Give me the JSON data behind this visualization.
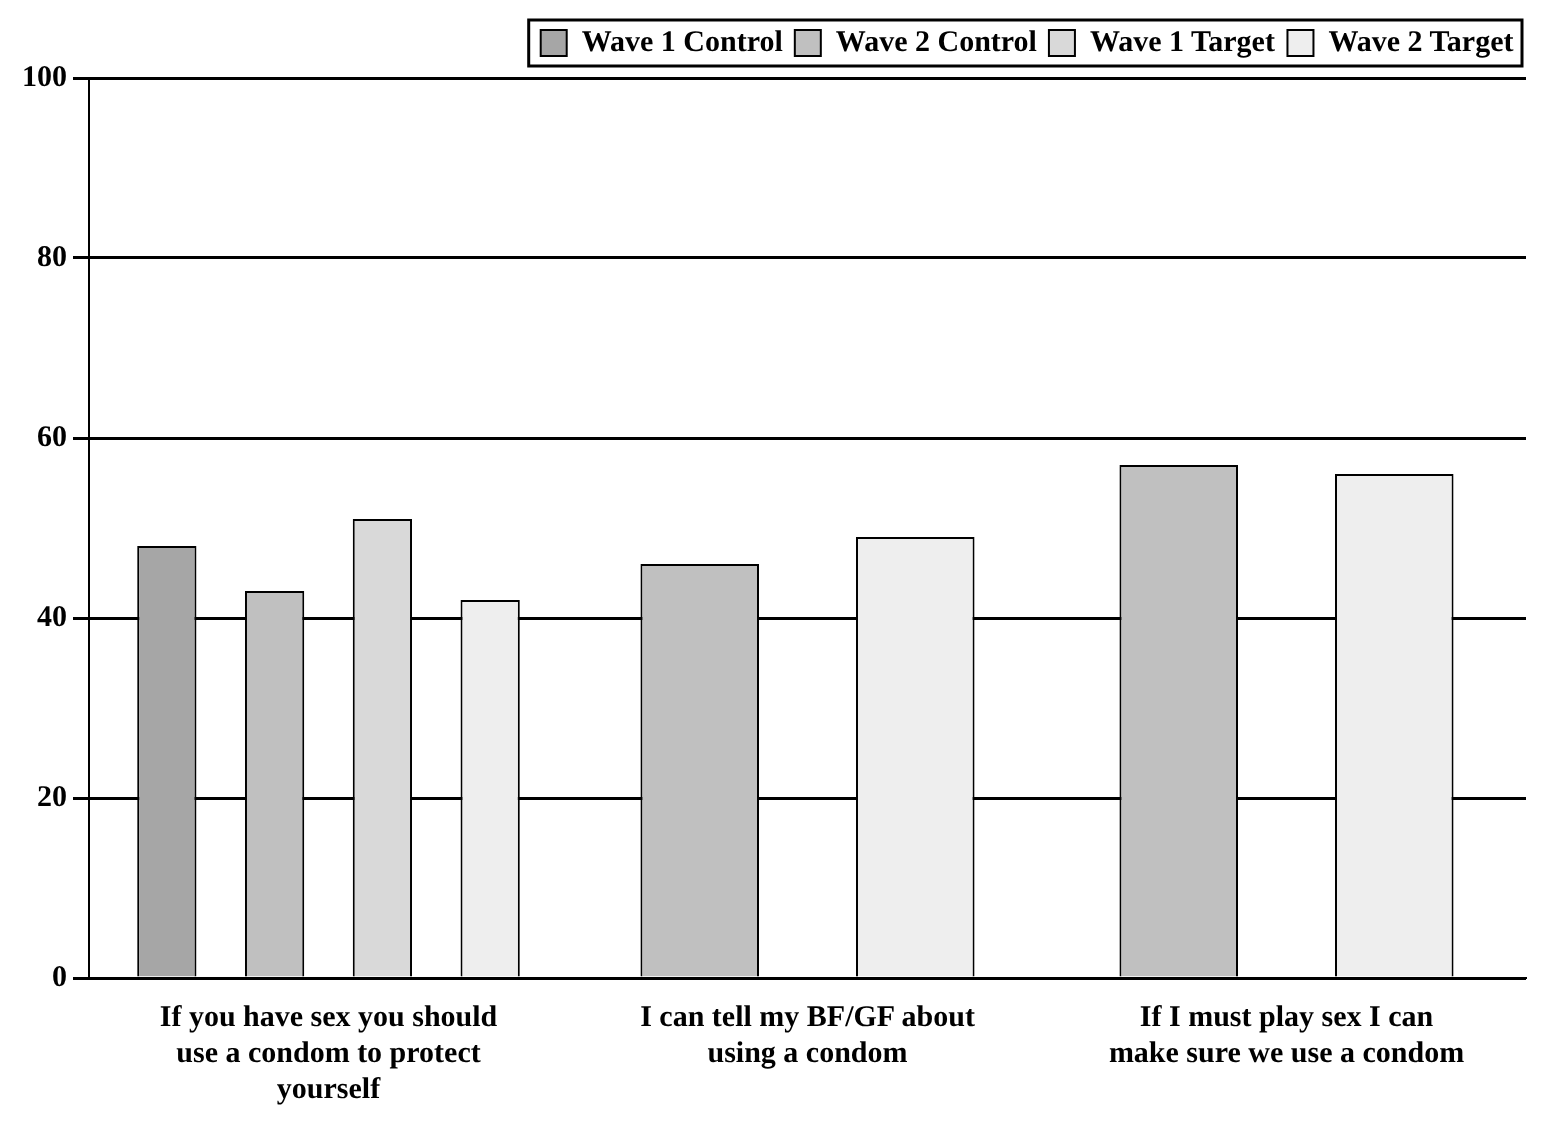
{
  "chart_data": {
    "type": "bar",
    "categories": [
      "If you have sex you should use a condom to protect yourself",
      "I can tell my BF/GF about using a condom",
      "If I must play sex I can make sure we use a condom"
    ],
    "series": [
      {
        "name": "Wave 1 Control",
        "color": "#a6a6a6",
        "values": [
          48,
          null,
          null
        ]
      },
      {
        "name": "Wave 2 Control",
        "color": "#c0c0c0",
        "values": [
          43,
          46,
          57
        ]
      },
      {
        "name": "Wave 1 Target",
        "color": "#d9d9d9",
        "values": [
          51,
          null,
          null
        ]
      },
      {
        "name": "Wave 2 Target",
        "color": "#eeeeee",
        "values": [
          42,
          49,
          56
        ]
      }
    ],
    "ylim": [
      0,
      100
    ],
    "yticks": [
      0,
      20,
      40,
      60,
      80,
      100
    ],
    "grid": "y",
    "legend": "top right"
  }
}
